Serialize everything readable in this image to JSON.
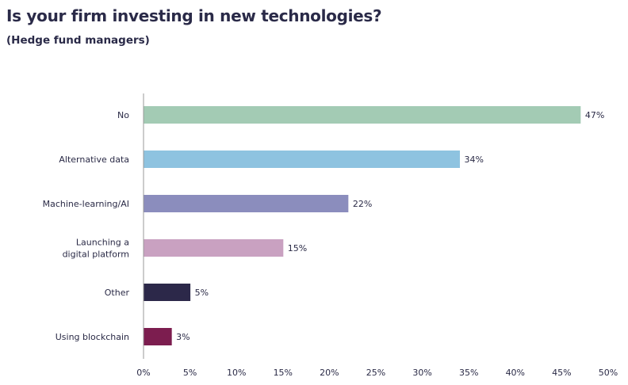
{
  "chart_data": {
    "type": "bar",
    "orientation": "horizontal",
    "title": "Is your firm investing in new technologies?",
    "subtitle": "(Hedge fund managers)",
    "categories": [
      [
        "No"
      ],
      [
        "Alternative data"
      ],
      [
        "Machine-learning/AI"
      ],
      [
        "Launching a",
        "digital platform"
      ],
      [
        "Other"
      ],
      [
        "Using blockchain"
      ]
    ],
    "values": [
      47,
      34,
      22,
      15,
      5,
      3
    ],
    "data_labels": [
      "47%",
      "34%",
      "22%",
      "15%",
      "5%",
      "3%"
    ],
    "colors": [
      "#a3cbb4",
      "#8ec3e0",
      "#8b8dbd",
      "#c9a1c1",
      "#2c2849",
      "#7c1d4f"
    ],
    "xlim": [
      0,
      50
    ],
    "xticks": [
      0,
      5,
      10,
      15,
      20,
      25,
      30,
      35,
      40,
      45,
      50
    ],
    "xtick_labels": [
      "0%",
      "5%",
      "10%",
      "15%",
      "20%",
      "25%",
      "30%",
      "35%",
      "40%",
      "45%",
      "50%"
    ],
    "grid": false,
    "legend": "none"
  }
}
